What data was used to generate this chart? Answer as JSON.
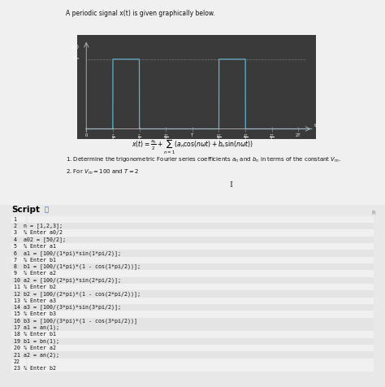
{
  "title": "A periodic signal x(t) is given graphically below.",
  "page_bg": "#d4d4d4",
  "upper_bg": "#e8e8e8",
  "graph_bg": "#3a3a3a",
  "signal_color": "#5ab4d6",
  "title_fontsize": 6.0,
  "formula": "x(t) = \\frac{a_0}{2} + \\sum_{n=1}^{\\infty}(a_n\\cos(n\\omega t) + b_n\\sin(n\\omega t))",
  "q1": "1. Determine the trigonometric Fourier series coefficients $a_n$ and $b_n$ in terms of the constant $V_m$.",
  "q2": "2. For $V_m = 100$ and $T = 2$",
  "script_label": "Script",
  "code_lines": [
    "1",
    "2  n = [1,2,3];",
    "3  % Enter a0/2",
    "4  a02 = [50/2];",
    "5  % Enter a1",
    "6  a1 = [100/(1*pi)*sin(1*pi/2)];",
    "7  % Enter b1",
    "8  b1 = [100/(1*pi)*(1 - cos(1*pi/2))];",
    "9  % Enter a2",
    "10 a2 = [100/(2*pi)*sin(2*pi/2)];",
    "11 % Enter b2",
    "12 b2 = [100/(2*pi)*(1 - cos(2*pi/2))];",
    "13 % Enter a3",
    "14 a3 = [100/(3*pi)*sin(3*pi/2)];",
    "15 % Enter b3",
    "16 b3 = [100/(3*pi)*(1 - cos(3*pi/2))]",
    "17 a1 = an(1);",
    "18 % Enter b1",
    "19 b1 = bn(1);",
    "20 % Enter a2",
    "21 a2 = an(2);",
    "22",
    "23 % Enter b2"
  ],
  "code_bg": "#f0f0f0",
  "code_alt_bg": "#e4e4e4",
  "code_fontsize": 4.8,
  "highlight_rows": [
    1,
    3,
    5,
    7,
    9,
    11,
    13,
    15,
    16,
    18,
    20
  ]
}
